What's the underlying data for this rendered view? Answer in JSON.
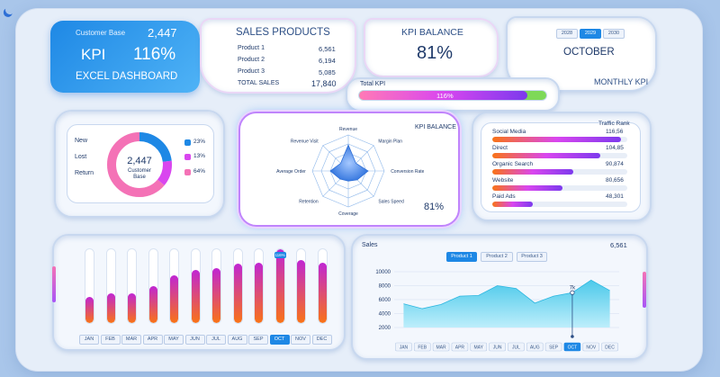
{
  "header": {
    "customer_base_label": "Customer Base",
    "customer_base_value": "2,447",
    "kpi_label": "KPI",
    "kpi_value": "116%",
    "title": "EXCEL DASHBOARD"
  },
  "sales_products": {
    "title": "SALES PRODUCTS",
    "rows": [
      {
        "label": "Product 1",
        "value": "6,561"
      },
      {
        "label": "Product 2",
        "value": "6,194"
      },
      {
        "label": "Product 3",
        "value": "5,085"
      }
    ],
    "total_label": "TOTAL SALES",
    "total_value": "17,840"
  },
  "kpi_balance_card": {
    "title": "KPI BALANCE",
    "value": "81%"
  },
  "total_kpi": {
    "label": "Total KPI",
    "value_text": "116%",
    "fill_fraction": 0.9
  },
  "period": {
    "years": [
      "2028",
      "2029",
      "2030"
    ],
    "selected_year_index": 1,
    "month": "OCTOBER",
    "caption": "MONTHLY KPI"
  },
  "donut": {
    "center_value": "2,447",
    "center_label_1": "Customer",
    "center_label_2": "Base",
    "legend_left": [
      "New",
      "Lost",
      "Return"
    ],
    "legend_right": [
      {
        "value": "23%",
        "color": "#1e88e5"
      },
      {
        "value": "13%",
        "color": "#d946ef"
      },
      {
        "value": "64%",
        "color": "#f472b6"
      }
    ],
    "segments": [
      0.23,
      0.13,
      0.64
    ]
  },
  "radar": {
    "title": "KPI BALANCE",
    "value": "81%",
    "axes": [
      "Revenue",
      "Margin Plan",
      "Conversion Rate",
      "Sales Speed",
      "Coverage",
      "Retention",
      "Average Order",
      "Revenue Visit"
    ],
    "values": [
      0.72,
      0.3,
      0.55,
      0.35,
      0.28,
      0.32,
      0.5,
      0.3
    ]
  },
  "traffic": {
    "title": "Traffic Rank",
    "items": [
      {
        "label": "Social Media",
        "value": "116,56",
        "fraction": 0.95
      },
      {
        "label": "Direct",
        "value": "104,85",
        "fraction": 0.8
      },
      {
        "label": "Organic Search",
        "value": "90,874",
        "fraction": 0.6
      },
      {
        "label": "Website",
        "value": "80,656",
        "fraction": 0.52
      },
      {
        "label": "Paid Ads",
        "value": "48,301",
        "fraction": 0.3
      }
    ]
  },
  "monthly": {
    "months": [
      "JAN",
      "FEB",
      "MAR",
      "APR",
      "MAY",
      "JUN",
      "JUL",
      "AUG",
      "SEP",
      "OCT",
      "NOV",
      "DEC"
    ],
    "values": [
      0.35,
      0.4,
      0.4,
      0.5,
      0.65,
      0.72,
      0.75,
      0.8,
      0.82,
      1.0,
      0.85,
      0.82
    ],
    "selected_index": 9,
    "selected_tag": "116%"
  },
  "chart_data": {
    "type": "area",
    "title": "Sales",
    "corner_value": "6,561",
    "series_tabs": [
      "Product 1",
      "Product 2",
      "Product 3"
    ],
    "selected_series_index": 0,
    "categories": [
      "JAN",
      "FEB",
      "MAR",
      "APR",
      "MAY",
      "JUN",
      "JUL",
      "AUG",
      "SEP",
      "OCT",
      "NOV",
      "DEC"
    ],
    "selected_category_index": 9,
    "ylim": [
      2000,
      10000
    ],
    "yticks": [
      2000,
      4000,
      6000,
      8000,
      10000
    ],
    "series": [
      {
        "name": "Product 1",
        "values": [
          5400,
          4700,
          5300,
          6500,
          6600,
          8000,
          7600,
          5500,
          6500,
          7000,
          8800,
          7300
        ]
      }
    ],
    "annotation": {
      "label": "7k",
      "index": 9
    }
  },
  "colors": {
    "accent": "#1e88e5",
    "magenta": "#d946ef",
    "orange": "#f97316",
    "area": "#5fd0ee"
  }
}
